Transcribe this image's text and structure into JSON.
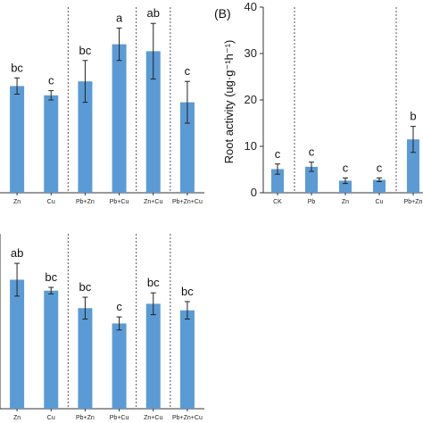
{
  "colors": {
    "bar": "#5b9bd5",
    "axis": "#333333",
    "divider": "#555555"
  },
  "chart_data": [
    {
      "type": "bar",
      "panel_label": "",
      "categories": [
        "Zn",
        "Cu",
        "Pb+Zn",
        "Pb+Cu",
        "Zn+Cu",
        "Pb+Zn+Cu"
      ],
      "values": [
        4.6,
        4.2,
        4.8,
        6.4,
        6.1,
        3.9
      ],
      "errors": [
        0.35,
        0.2,
        0.9,
        0.7,
        1.2,
        0.9
      ],
      "letters": [
        "bc",
        "c",
        "bc",
        "a",
        "ab",
        "c"
      ],
      "ylim": [
        0,
        8
      ],
      "dividers_after": [
        1,
        3,
        4
      ],
      "ylabel": ""
    },
    {
      "type": "bar",
      "panel_label": "(B)",
      "categories": [
        "CK",
        "Pb",
        "Zn",
        "Cu",
        "Pb+Zn"
      ],
      "values": [
        5.1,
        5.6,
        2.6,
        2.8,
        11.5
      ],
      "errors": [
        1.1,
        1.0,
        0.6,
        0.4,
        2.8
      ],
      "letters": [
        "c",
        "c",
        "c",
        "c",
        "b"
      ],
      "ylim": [
        0,
        40
      ],
      "yticks": [
        "0",
        "10",
        "20",
        "30",
        "40"
      ],
      "dividers_after": [
        0,
        3
      ],
      "ylabel": "Root activity (ug·g⁻¹h⁻¹)"
    },
    {
      "type": "bar",
      "panel_label": "",
      "categories": [
        "Zn",
        "Cu",
        "Pb+Zn",
        "Pb+Cu",
        "Zn+Cu",
        "Pb+Zn+Cu"
      ],
      "values": [
        5.9,
        5.4,
        4.6,
        3.9,
        4.8,
        4.5
      ],
      "errors": [
        0.75,
        0.15,
        0.5,
        0.3,
        0.5,
        0.4
      ],
      "letters": [
        "ab",
        "bc",
        "bc",
        "c",
        "bc",
        "bc"
      ],
      "ylim": [
        0,
        8
      ],
      "dividers_after": [
        1,
        3,
        4
      ],
      "ylabel": ""
    }
  ]
}
